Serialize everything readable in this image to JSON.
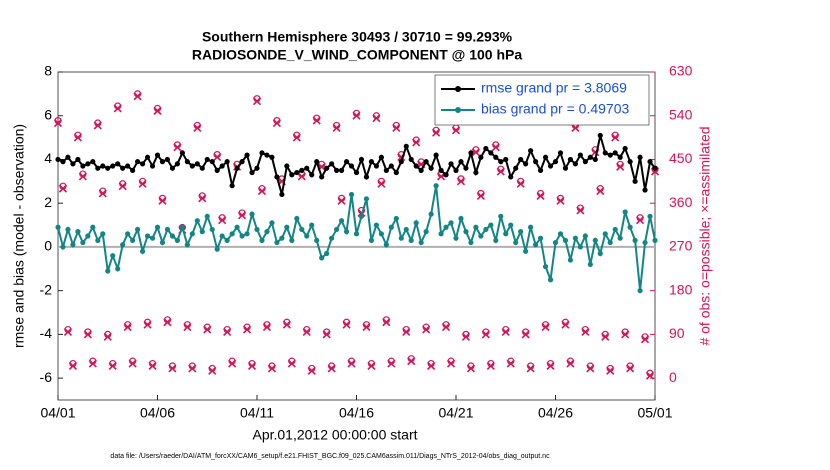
{
  "chart_data": {
    "type": "line",
    "title": "Southern Hemisphere 30493 / 30710 = 99.293%",
    "subtitle": "RADIOSONDE_V_WIND_COMPONENT @ 100 hPa",
    "xlabel": "Apr.01,2012 00:00:00 start",
    "ylabel": "rmse and bias (model - observation)",
    "y2label": "# of obs: o=possible; ×=assimilated",
    "footnote": "data file: /Users/raeder/DAI/ATM_forcXX/CAM6_setup/f.e21.FHIST_BGC.f09_025.CAM6assim.011/Diags_NTrS_2012-04/obs_diag_output.nc",
    "xlim": [
      0,
      30
    ],
    "xticks": [
      {
        "value": 0,
        "label": "04/01"
      },
      {
        "value": 5,
        "label": "04/06"
      },
      {
        "value": 10,
        "label": "04/11"
      },
      {
        "value": 15,
        "label": "04/16"
      },
      {
        "value": 20,
        "label": "04/21"
      },
      {
        "value": 25,
        "label": "04/26"
      },
      {
        "value": 30,
        "label": "05/01"
      }
    ],
    "ylim": [
      -7,
      8
    ],
    "yticks": [
      -6,
      -4,
      -2,
      0,
      2,
      4,
      6,
      8
    ],
    "y2lim": [
      -45,
      630
    ],
    "y2ticks": [
      0,
      90,
      180,
      270,
      360,
      450,
      540,
      630
    ],
    "hline": 0,
    "legend": "upper right",
    "legend_text_color": "#1a4fd8",
    "x": [
      0,
      0.25,
      0.5,
      0.75,
      1,
      1.25,
      1.5,
      1.75,
      2,
      2.25,
      2.5,
      2.75,
      3,
      3.25,
      3.5,
      3.75,
      4,
      4.25,
      4.5,
      4.75,
      5,
      5.25,
      5.5,
      5.75,
      6,
      6.25,
      6.5,
      6.75,
      7,
      7.25,
      7.5,
      7.75,
      8,
      8.25,
      8.5,
      8.75,
      9,
      9.25,
      9.5,
      9.75,
      10,
      10.25,
      10.5,
      10.75,
      11,
      11.25,
      11.5,
      11.75,
      12,
      12.25,
      12.5,
      12.75,
      13,
      13.25,
      13.5,
      13.75,
      14,
      14.25,
      14.5,
      14.75,
      15,
      15.25,
      15.5,
      15.75,
      16,
      16.25,
      16.5,
      16.75,
      17,
      17.25,
      17.5,
      17.75,
      18,
      18.25,
      18.5,
      18.75,
      19,
      19.25,
      19.5,
      19.75,
      20,
      20.25,
      20.5,
      20.75,
      21,
      21.25,
      21.5,
      21.75,
      22,
      22.25,
      22.5,
      22.75,
      23,
      23.25,
      23.5,
      23.75,
      24,
      24.25,
      24.5,
      24.75,
      25,
      25.25,
      25.5,
      25.75,
      26,
      26.25,
      26.5,
      26.75,
      27,
      27.25,
      27.5,
      27.75,
      28,
      28.25,
      28.5,
      28.75,
      29,
      29.25,
      29.5,
      29.75,
      30
    ],
    "series": [
      {
        "name": "rmse grand pr = 3.8069",
        "color": "#000000",
        "values": [
          4.0,
          3.9,
          4.1,
          3.8,
          4.0,
          3.7,
          3.8,
          3.9,
          3.6,
          3.7,
          3.6,
          3.7,
          3.8,
          3.6,
          3.7,
          3.5,
          3.9,
          3.8,
          4.1,
          3.7,
          4.2,
          3.9,
          4.0,
          3.6,
          3.8,
          4.3,
          3.9,
          3.7,
          3.8,
          3.6,
          4.0,
          3.9,
          3.5,
          3.7,
          3.9,
          2.8,
          3.6,
          3.9,
          4.2,
          3.4,
          3.6,
          4.3,
          4.2,
          4.1,
          3.2,
          2.4,
          3.7,
          3.3,
          3.4,
          3.5,
          3.6,
          3.3,
          3.9,
          3.2,
          3.6,
          3.8,
          3.5,
          3.5,
          3.9,
          3.7,
          3.4,
          4.0,
          3.2,
          3.9,
          3.7,
          4.1,
          3.5,
          3.7,
          3.4,
          3.9,
          4.6,
          4.0,
          3.7,
          3.5,
          3.9,
          3.6,
          4.2,
          3.5,
          3.3,
          3.8,
          3.5,
          3.9,
          3.6,
          4.3,
          3.4,
          4.1,
          4.5,
          4.3,
          4.1,
          3.9,
          4.0,
          3.2,
          3.6,
          4.0,
          3.8,
          4.4,
          3.9,
          3.5,
          4.1,
          3.7,
          3.9,
          4.3,
          3.6,
          4.0,
          3.8,
          4.2,
          3.9,
          4.1,
          4.0,
          5.1,
          4.3,
          4.2,
          4.3,
          4.1,
          4.5,
          3.9,
          3.0,
          4.1,
          2.6,
          3.9,
          3.6
        ]
      },
      {
        "name": "bias grand pr = 0.49703",
        "color": "#138585",
        "values": [
          0.9,
          0.0,
          0.8,
          0.1,
          0.7,
          0.2,
          0.5,
          0.9,
          0.3,
          0.6,
          -1.1,
          -0.4,
          -1.0,
          0.1,
          0.6,
          0.3,
          0.8,
          -0.2,
          0.5,
          0.4,
          0.9,
          0.2,
          0.8,
          0.5,
          0.3,
          0.9,
          0.1,
          0.6,
          1.2,
          0.7,
          1.4,
          0.8,
          -0.1,
          0.5,
          0.3,
          0.6,
          0.9,
          0.5,
          0.6,
          1.5,
          0.8,
          0.3,
          0.7,
          1.1,
          0.2,
          0.4,
          0.9,
          0.3,
          1.3,
          0.8,
          0.5,
          1.0,
          0.3,
          -0.5,
          -0.3,
          0.4,
          0.8,
          1.2,
          0.7,
          2.4,
          0.6,
          1.4,
          2.2,
          0.3,
          1.0,
          0.6,
          0.1,
          0.9,
          1.3,
          0.4,
          0.8,
          0.3,
          1.1,
          0.2,
          0.7,
          1.5,
          2.8,
          0.6,
          0.9,
          1.1,
          0.4,
          1.3,
          0.7,
          0.2,
          0.9,
          0.5,
          0.8,
          1.0,
          0.3,
          1.4,
          0.6,
          1.0,
          0.2,
          0.7,
          -0.2,
          0.9,
          0.1,
          0.4,
          -0.9,
          -1.5,
          0.2,
          0.6,
          0.3,
          -0.6,
          0.4,
          0.0,
          0.5,
          -0.8,
          0.3,
          -0.3,
          0.6,
          0.2,
          0.8,
          0.4,
          1.6,
          0.9,
          0.3,
          -2.0,
          0.2,
          1.4,
          0.3
        ]
      }
    ],
    "obs": [
      {
        "marker": "o",
        "color": "#d4145a",
        "axis": "y2",
        "values": [
          530,
          395,
          100,
          30,
          500,
          420,
          95,
          35,
          525,
          385,
          90,
          30,
          560,
          400,
          110,
          35,
          585,
          405,
          115,
          30,
          555,
          370,
          120,
          25,
          480,
          310,
          110,
          25,
          520,
          375,
          105,
          20,
          460,
          330,
          100,
          35,
          440,
          340,
          105,
          30,
          575,
          390,
          110,
          25,
          530,
          410,
          115,
          35,
          500,
          420,
          100,
          20,
          535,
          440,
          95,
          25,
          520,
          370,
          115,
          35,
          545,
          345,
          110,
          30,
          540,
          405,
          120,
          35,
          520,
          460,
          100,
          40,
          490,
          445,
          105,
          30,
          510,
          420,
          110,
          35,
          515,
          410,
          90,
          25,
          470,
          380,
          95,
          30,
          480,
          430,
          100,
          35,
          560,
          405,
          95,
          25,
          550,
          380,
          110,
          30,
          540,
          370,
          115,
          35,
          520,
          350,
          100,
          25,
          470,
          390,
          90,
          20,
          500,
          440,
          95,
          25,
          555,
          330,
          85,
          10,
          430
        ]
      },
      {
        "marker": "x",
        "color": "#d4145a",
        "axis": "y2",
        "values": [
          525,
          390,
          95,
          25,
          495,
          415,
          90,
          30,
          520,
          380,
          85,
          25,
          555,
          395,
          105,
          30,
          580,
          400,
          110,
          25,
          550,
          365,
          115,
          20,
          475,
          305,
          105,
          20,
          515,
          370,
          100,
          15,
          455,
          325,
          95,
          30,
          435,
          335,
          100,
          25,
          570,
          385,
          105,
          20,
          525,
          405,
          110,
          30,
          495,
          415,
          95,
          15,
          530,
          435,
          90,
          20,
          515,
          365,
          110,
          30,
          540,
          340,
          105,
          25,
          535,
          400,
          115,
          30,
          515,
          455,
          95,
          35,
          485,
          440,
          100,
          25,
          505,
          415,
          105,
          30,
          510,
          405,
          85,
          20,
          465,
          375,
          90,
          25,
          475,
          425,
          95,
          30,
          555,
          400,
          90,
          20,
          545,
          375,
          105,
          25,
          535,
          365,
          110,
          30,
          515,
          345,
          95,
          20,
          465,
          385,
          85,
          15,
          495,
          435,
          90,
          20,
          550,
          325,
          80,
          5,
          425
        ]
      }
    ]
  }
}
